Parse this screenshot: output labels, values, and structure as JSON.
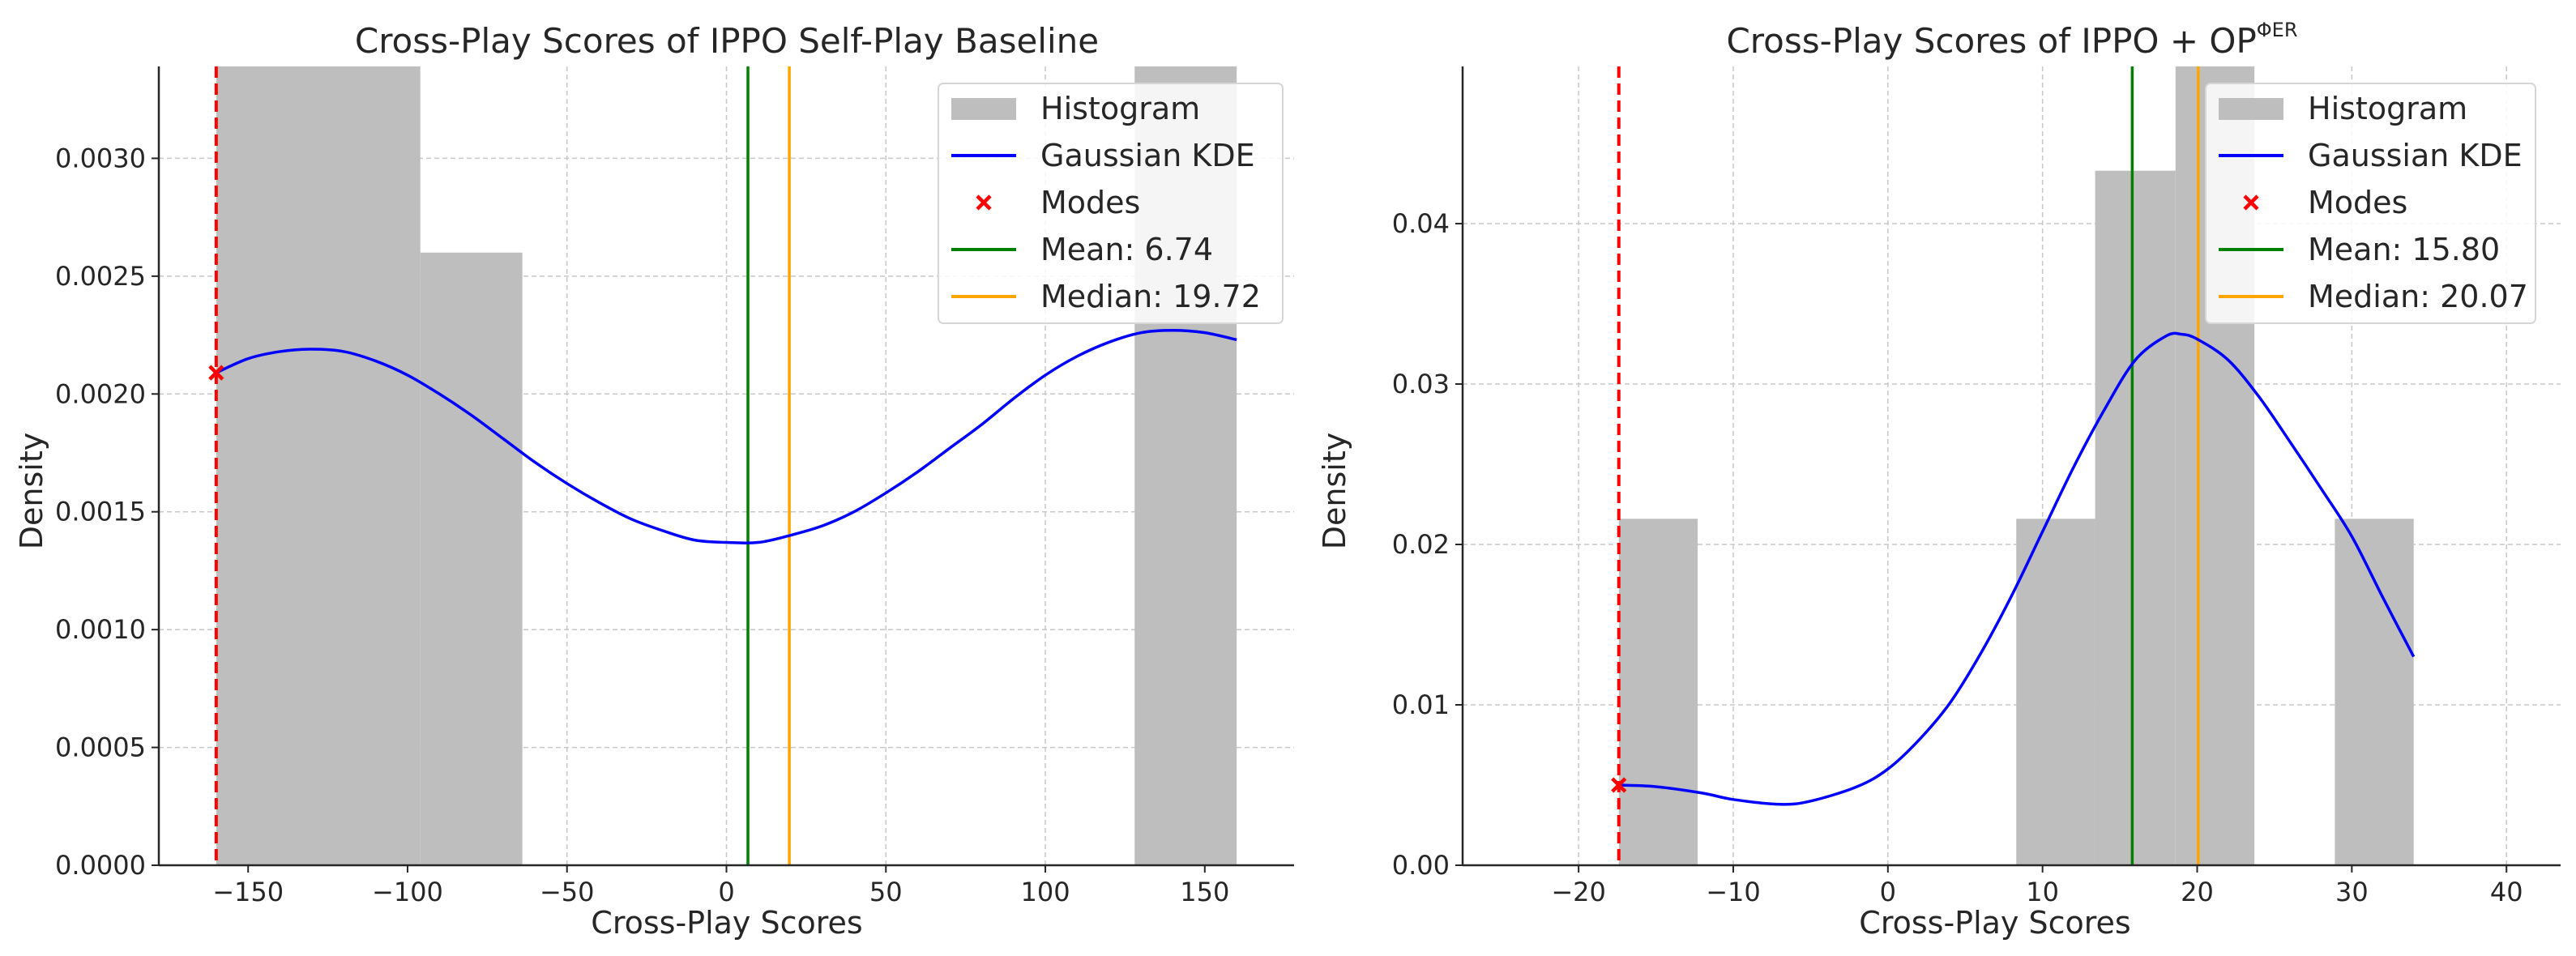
{
  "chart_data": [
    {
      "type": "histogram+kde",
      "title": "Cross-Play Scores of IPPO Self-Play Baseline",
      "xlabel": "Cross-Play Scores",
      "ylabel": "Density",
      "xlim": [
        -178,
        178
      ],
      "ylim": [
        0,
        0.00339
      ],
      "xticks": [
        -150,
        -100,
        -50,
        0,
        50,
        100,
        150
      ],
      "xtick_labels": [
        "−150",
        "−100",
        "−50",
        "0",
        "50",
        "100",
        "150"
      ],
      "yticks": [
        0,
        0.0005,
        0.001,
        0.0015,
        0.002,
        0.0025,
        0.003
      ],
      "ytick_labels": [
        "0.0000",
        "0.0005",
        "0.0010",
        "0.0015",
        "0.0020",
        "0.0025",
        "0.0030"
      ],
      "grid": true,
      "histogram": [
        {
          "x0": -160,
          "x1": -96,
          "density": 0.0034
        },
        {
          "x0": -96,
          "x1": -64,
          "density": 0.0026
        },
        {
          "x0": 128,
          "x1": 160,
          "density": 0.0034
        }
      ],
      "kde": {
        "x": [
          -160,
          -150,
          -140,
          -130,
          -120,
          -110,
          -100,
          -90,
          -80,
          -70,
          -60,
          -50,
          -40,
          -30,
          -20,
          -10,
          0,
          10,
          20,
          30,
          40,
          50,
          60,
          70,
          80,
          90,
          100,
          110,
          120,
          130,
          140,
          150,
          160
        ],
        "y": [
          0.00209,
          0.00215,
          0.00218,
          0.00219,
          0.00218,
          0.00214,
          0.00208,
          0.002,
          0.00191,
          0.00181,
          0.00171,
          0.00162,
          0.00154,
          0.00147,
          0.00142,
          0.00138,
          0.00137,
          0.00137,
          0.0014,
          0.00144,
          0.0015,
          0.00158,
          0.00167,
          0.00177,
          0.00187,
          0.00198,
          0.00208,
          0.00216,
          0.00222,
          0.00226,
          0.00227,
          0.00226,
          0.00223
        ]
      },
      "modes": [
        {
          "x": -160,
          "y": 0.00209
        }
      ],
      "mode_line": -160,
      "mean": 6.74,
      "median": 19.72,
      "legend": {
        "position": "top-right",
        "entries": [
          {
            "kind": "hist",
            "label": "Histogram"
          },
          {
            "kind": "kde",
            "label": "Gaussian KDE"
          },
          {
            "kind": "mode",
            "label": "Modes"
          },
          {
            "kind": "mean",
            "label": "Mean: 6.74"
          },
          {
            "kind": "median",
            "label": "Median: 19.72"
          }
        ]
      }
    },
    {
      "type": "histogram+kde",
      "title": "Cross-Play Scores of IPPO + OP",
      "title_superscript": "ΦER",
      "xlabel": "Cross-Play Scores",
      "ylabel": "Density",
      "xlim": [
        -27.5,
        43.5
      ],
      "ylim": [
        0,
        0.0498
      ],
      "xticks": [
        -20,
        -10,
        0,
        10,
        20,
        30,
        40
      ],
      "xtick_labels": [
        "−20",
        "−10",
        "0",
        "10",
        "20",
        "30",
        "40"
      ],
      "yticks": [
        0,
        0.01,
        0.02,
        0.03,
        0.04
      ],
      "ytick_labels": [
        "0.00",
        "0.01",
        "0.02",
        "0.03",
        "0.04"
      ],
      "grid": true,
      "histogram": [
        {
          "x0": -17.4,
          "x1": -12.3,
          "density": 0.0216
        },
        {
          "x0": 8.3,
          "x1": 13.4,
          "density": 0.0216
        },
        {
          "x0": 13.4,
          "x1": 18.6,
          "density": 0.0433
        },
        {
          "x0": 18.6,
          "x1": 23.7,
          "density": 0.0498
        },
        {
          "x0": 28.9,
          "x1": 34.0,
          "density": 0.0216
        }
      ],
      "kde": {
        "x": [
          -17.4,
          -15,
          -12,
          -10,
          -7,
          -5,
          -2,
          0,
          2,
          4,
          6,
          8,
          10,
          12,
          14,
          16,
          18,
          19,
          20,
          22,
          24,
          26,
          28,
          30,
          32,
          34
        ],
        "y": [
          0.005,
          0.0049,
          0.0045,
          0.0041,
          0.0038,
          0.004,
          0.0049,
          0.006,
          0.0078,
          0.0101,
          0.0132,
          0.0168,
          0.0208,
          0.0248,
          0.0284,
          0.0315,
          0.033,
          0.0331,
          0.0328,
          0.0315,
          0.0292,
          0.0264,
          0.0235,
          0.0205,
          0.0167,
          0.013
        ]
      },
      "modes": [
        {
          "x": -17.4,
          "y": 0.005
        }
      ],
      "mode_line": -17.4,
      "mean": 15.8,
      "median": 20.07,
      "legend": {
        "position": "top-right",
        "entries": [
          {
            "kind": "hist",
            "label": "Histogram"
          },
          {
            "kind": "kde",
            "label": "Gaussian KDE"
          },
          {
            "kind": "mode",
            "label": "Modes"
          },
          {
            "kind": "mean",
            "label": "Mean: 15.80"
          },
          {
            "kind": "median",
            "label": "Median: 20.07"
          }
        ]
      }
    }
  ],
  "colors": {
    "histogram": "#bebebe",
    "kde": "#0000ff",
    "mode": "#ff0000",
    "mean": "#008000",
    "median": "#ffa500",
    "grid": "#c8c8c8",
    "axis": "#262626"
  }
}
